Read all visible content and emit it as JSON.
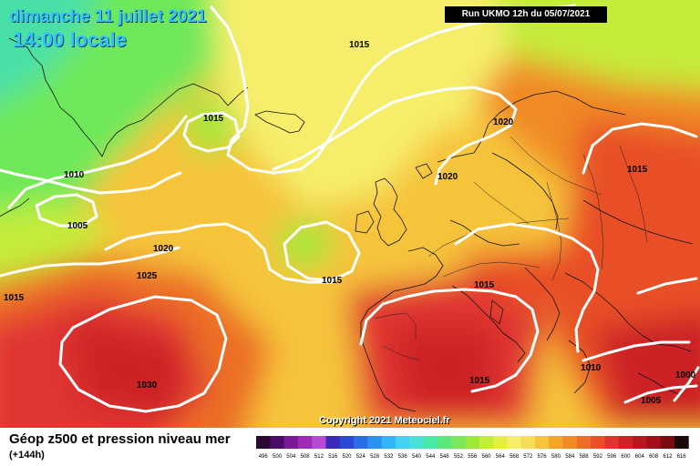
{
  "header": {
    "date_line": "dimanche 11 juillet 2021",
    "time_line": "14:00 locale",
    "run_label": "Run UKMO 12h du 05/07/2021"
  },
  "map": {
    "copyright": "Copyright 2021 Meteociel.fr",
    "isobar_labels": [
      "1015",
      "1015",
      "1020",
      "1020",
      "1015",
      "1010",
      "1005",
      "1020",
      "1025",
      "1015",
      "1015",
      "1015",
      "1030",
      "1015",
      "1010",
      "1000",
      "1005"
    ]
  },
  "legend": {
    "title": "Géop z500 et pression niveau mer",
    "subtitle": "(+144h)",
    "scale_values": [
      "496",
      "500",
      "504",
      "508",
      "512",
      "516",
      "520",
      "524",
      "528",
      "532",
      "536",
      "540",
      "544",
      "548",
      "552",
      "556",
      "560",
      "564",
      "568",
      "572",
      "576",
      "580",
      "584",
      "588",
      "592",
      "596",
      "600",
      "604",
      "608",
      "612",
      "616"
    ],
    "scale_colors": [
      "#2a0a33",
      "#4a0a66",
      "#7a1a99",
      "#a02ab8",
      "#b84ad6",
      "#3a2ab8",
      "#2a4ad6",
      "#2a6ee6",
      "#2a92f0",
      "#34b6f6",
      "#44d2f4",
      "#4ae0d8",
      "#4ae8a8",
      "#5ae87c",
      "#7ae85a",
      "#9ee83a",
      "#c4ec3a",
      "#e6ee44",
      "#f6ee6a",
      "#f8dc58",
      "#f6c43a",
      "#f4a428",
      "#f08a26",
      "#ec6e26",
      "#e85028",
      "#e03430",
      "#cc2426",
      "#b81820",
      "#a0101a",
      "#7a0a12",
      "#1a0a0c"
    ]
  }
}
